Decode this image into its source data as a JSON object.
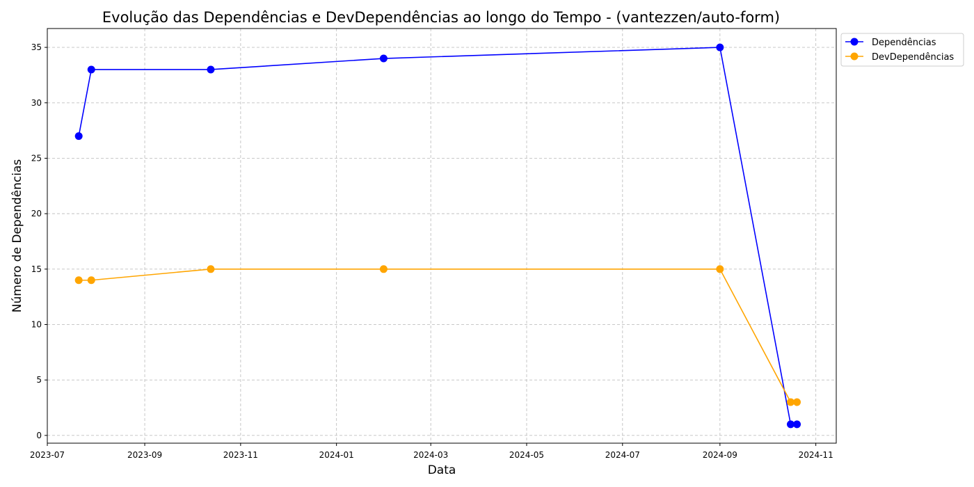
{
  "chart_data": {
    "type": "line",
    "title": "Evolução das Dependências e DevDependências ao longo do Tempo - (vantezzen/auto-form)",
    "xlabel": "Data",
    "ylabel": "Número de Dependências",
    "x": [
      "2023-07-21",
      "2023-07-29",
      "2023-10-13",
      "2024-01-31",
      "2024-09-01",
      "2024-10-16",
      "2024-10-20"
    ],
    "x_tick_labels": [
      "2023-07",
      "2023-09",
      "2023-11",
      "2024-01",
      "2024-03",
      "2024-05",
      "2024-07",
      "2024-09",
      "2024-11"
    ],
    "y_tick_labels": [
      "0",
      "5",
      "10",
      "15",
      "20",
      "25",
      "30",
      "35"
    ],
    "xlim": [
      "2023-07-01",
      "2024-11-14"
    ],
    "ylim": [
      -0.7,
      36.7
    ],
    "grid": true,
    "legend_position": "outside-top-right",
    "series": [
      {
        "name": "Dependências",
        "color": "#0000ff",
        "values": [
          27,
          33,
          33,
          34,
          35,
          1,
          1
        ]
      },
      {
        "name": "DevDependências",
        "color": "#ffa500",
        "values": [
          14,
          14,
          15,
          15,
          15,
          3,
          3
        ]
      }
    ]
  }
}
